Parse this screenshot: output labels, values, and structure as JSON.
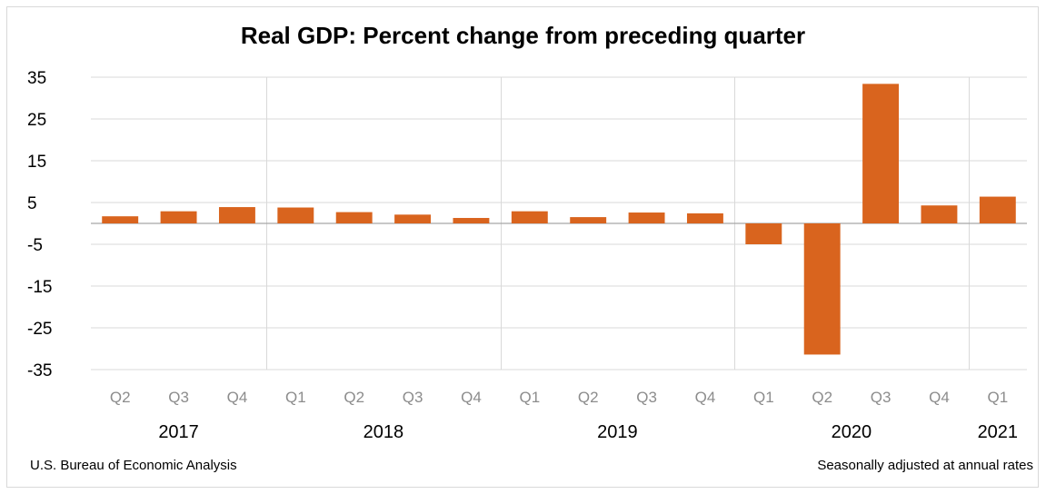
{
  "chart_data": {
    "type": "bar",
    "title": "Real GDP:  Percent change from preceding quarter",
    "categories": [
      "Q2",
      "Q3",
      "Q4",
      "Q1",
      "Q2",
      "Q3",
      "Q4",
      "Q1",
      "Q2",
      "Q3",
      "Q4",
      "Q1",
      "Q2",
      "Q3",
      "Q4",
      "Q1"
    ],
    "years": [
      {
        "label": "2017",
        "start": 0,
        "end": 2
      },
      {
        "label": "2018",
        "start": 3,
        "end": 6
      },
      {
        "label": "2019",
        "start": 7,
        "end": 10
      },
      {
        "label": "2020",
        "start": 11,
        "end": 14
      },
      {
        "label": "2021",
        "start": 15,
        "end": 15
      }
    ],
    "series": [
      {
        "values": [
          1.7,
          2.9,
          3.9,
          3.8,
          2.7,
          2.1,
          1.3,
          2.9,
          1.5,
          2.6,
          2.4,
          -5.0,
          -31.4,
          33.4,
          4.3,
          6.4
        ]
      }
    ],
    "ylim": [
      -35,
      35
    ],
    "yticks": [
      35,
      25,
      15,
      5,
      -5,
      -15,
      -25,
      -35
    ],
    "xlabel": "",
    "ylabel": "",
    "grid": true,
    "bar_color": "#d9641e"
  },
  "footer": {
    "source": "U.S. Bureau of Economic Analysis",
    "note": "Seasonally adjusted at annual rates"
  }
}
